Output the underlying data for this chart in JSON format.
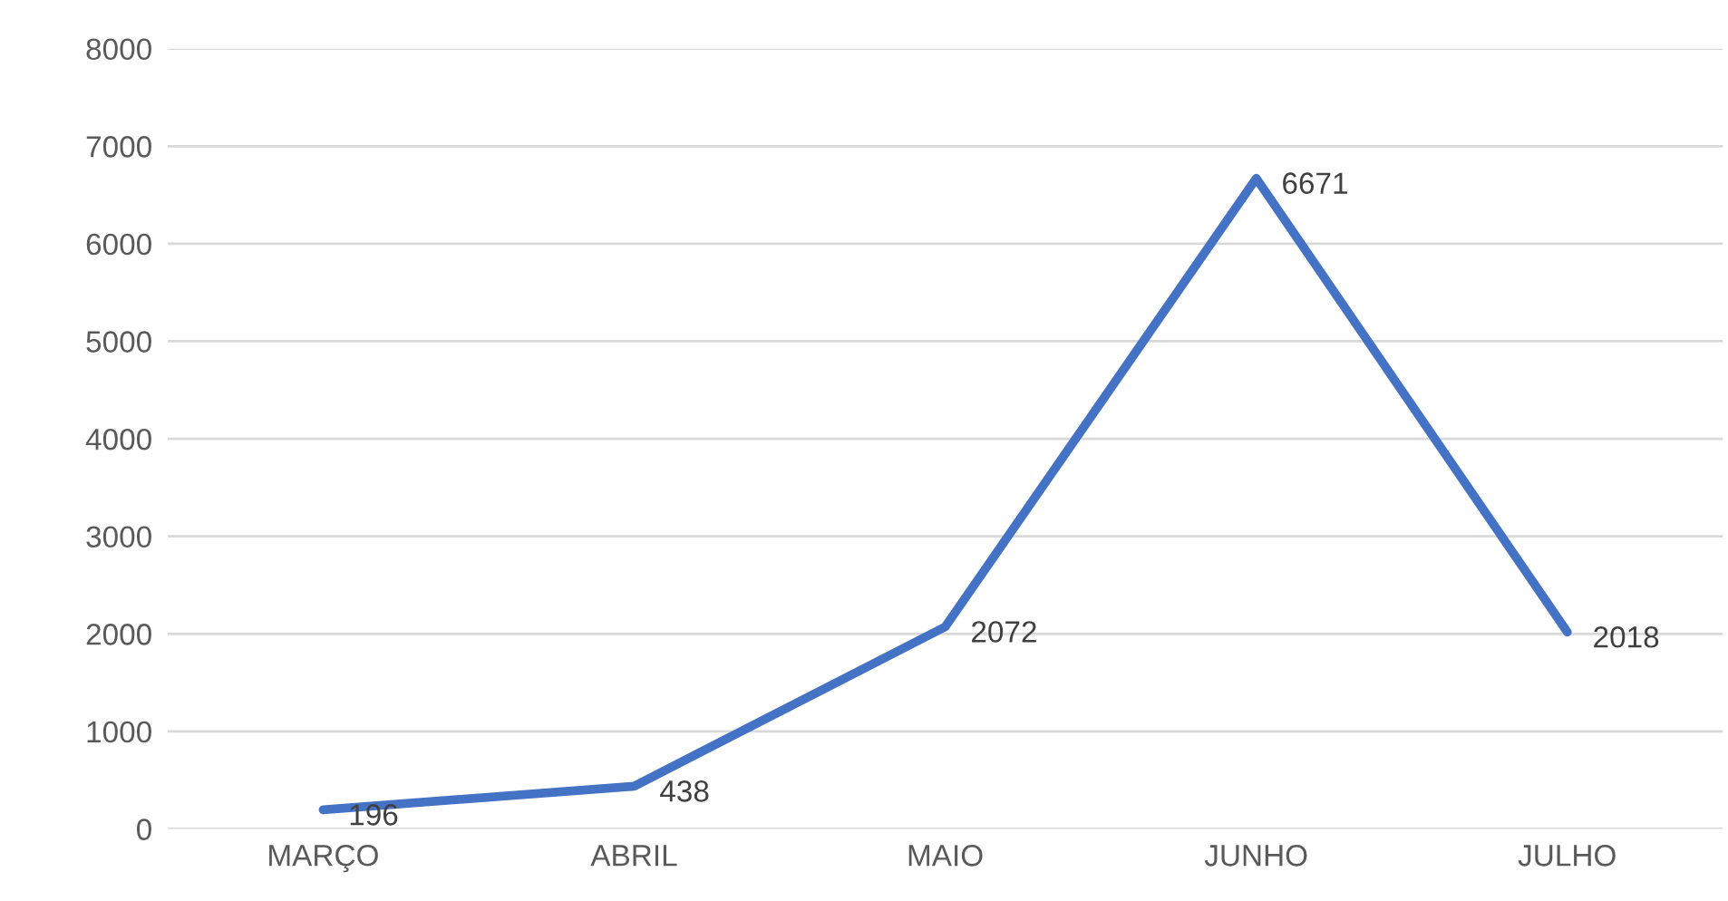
{
  "chart_data": {
    "type": "line",
    "categories": [
      "MARÇO",
      "ABRIL",
      "MAIO",
      "JUNHO",
      "JULHO"
    ],
    "series": [
      {
        "color": "#4472c4",
        "values": [
          196,
          438,
          2072,
          6671,
          2018
        ]
      }
    ],
    "ylim": [
      0,
      8000
    ],
    "yticks": [
      0,
      1000,
      2000,
      3000,
      4000,
      5000,
      6000,
      7000,
      8000
    ],
    "grid": "y",
    "data_labels": true,
    "marker": "none",
    "line_style": "solid",
    "legend": false
  }
}
